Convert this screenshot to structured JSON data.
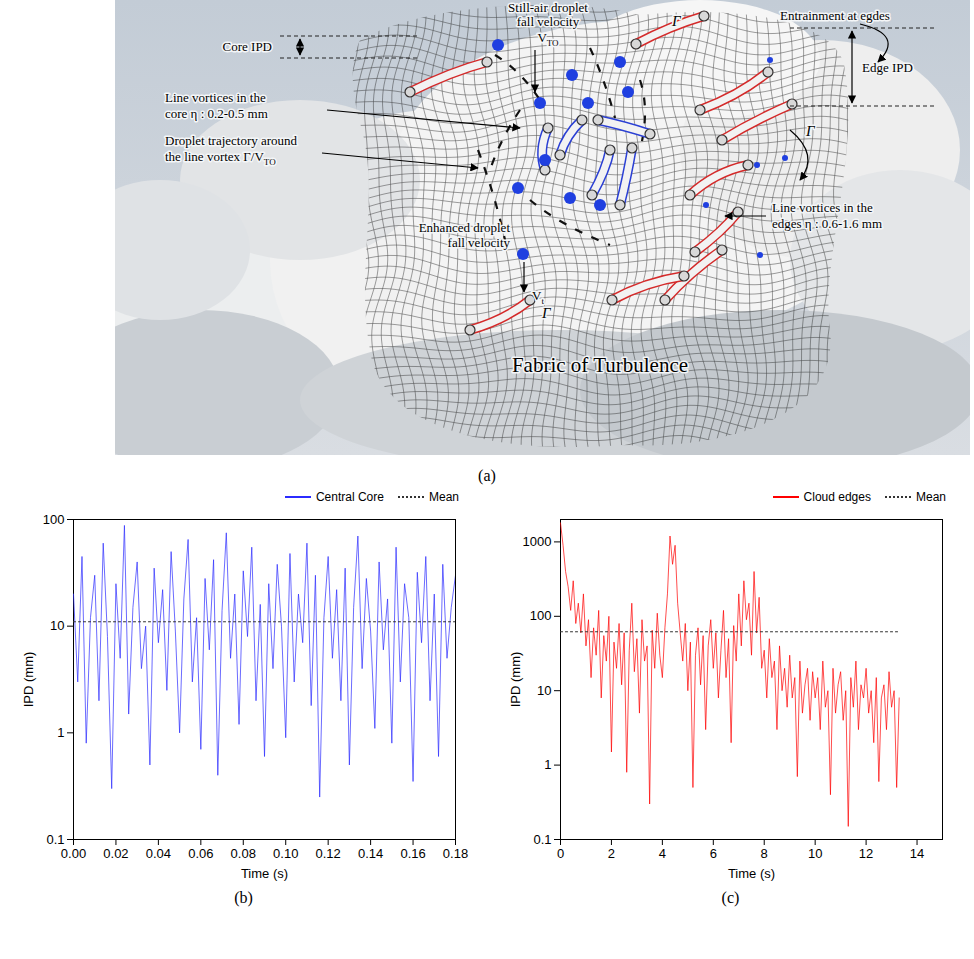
{
  "diagram": {
    "caption": "(a)",
    "still_air": {
      "lines": [
        "Still-air droplet",
        "fall velocity"
      ],
      "symbol": "V",
      "sub": "TO"
    },
    "entrainment": "Entrainment at egdes",
    "core_ipd": "Core IPD",
    "edge_ipd": "Edge IPD",
    "core_vortices": [
      "Line vortices in the",
      "core η : 0.2-0.5 mm"
    ],
    "trajectory": {
      "lines": [
        "Droplet trajectory around",
        "the line vortex Γ/V"
      ],
      "sub": "TO"
    },
    "enhanced": {
      "lines": [
        "Enhanced droplet",
        "fall velocity"
      ],
      "symbol": "V",
      "sub": "t"
    },
    "edge_vortices": [
      "Line vortices in the",
      "edges η : 0.6-1.6 mm"
    ],
    "fabric": "Fabric of Turbulence",
    "circulation": "Γ"
  },
  "chart_data": [
    {
      "type": "line",
      "caption": "(b)",
      "x_label": "Time (s)",
      "y_label": "IPD (mm)",
      "log": "y",
      "grid": false,
      "legend": "top",
      "xlim": [
        0,
        0.18
      ],
      "xticks": [
        {
          "value": 0,
          "label": "0.00"
        },
        0.02,
        0.04,
        0.06,
        0.08,
        {
          "value": 0.1,
          "label": "0.10"
        },
        0.12,
        0.14,
        0.16,
        0.18
      ],
      "ylim": [
        0.1,
        100
      ],
      "yticks": [
        0.1,
        1,
        10,
        100
      ],
      "series": [
        {
          "name": "Central Core",
          "color": "#2b2bff",
          "line_style": "solid",
          "x": [
            0,
            0.002,
            0.004,
            0.006,
            0.008,
            0.01,
            0.012,
            0.014,
            0.016,
            0.018,
            0.02,
            0.022,
            0.024,
            0.026,
            0.028,
            0.03,
            0.032,
            0.034,
            0.036,
            0.038,
            0.04,
            0.042,
            0.044,
            0.046,
            0.048,
            0.05,
            0.052,
            0.054,
            0.056,
            0.058,
            0.06,
            0.062,
            0.064,
            0.066,
            0.068,
            0.07,
            0.072,
            0.074,
            0.076,
            0.078,
            0.08,
            0.082,
            0.084,
            0.086,
            0.088,
            0.09,
            0.092,
            0.094,
            0.096,
            0.098,
            0.1,
            0.102,
            0.104,
            0.106,
            0.108,
            0.11,
            0.112,
            0.114,
            0.116,
            0.118,
            0.12,
            0.122,
            0.124,
            0.126,
            0.128,
            0.13,
            0.132,
            0.134,
            0.136,
            0.138,
            0.14,
            0.142,
            0.144,
            0.146,
            0.148,
            0.15,
            0.152,
            0.154,
            0.156,
            0.158,
            0.16,
            0.162,
            0.164,
            0.166,
            0.168,
            0.17,
            0.172,
            0.174,
            0.176,
            0.178,
            0.18
          ],
          "values": [
            20,
            3,
            45,
            0.8,
            12,
            30,
            2,
            60,
            8,
            0.3,
            25,
            5,
            88,
            1.5,
            15,
            40,
            4,
            10,
            0.5,
            35,
            7,
            22,
            2.5,
            50,
            9,
            1,
            18,
            65,
            3,
            12,
            0.7,
            28,
            6,
            42,
            0.4,
            14,
            75,
            5,
            20,
            1.2,
            33,
            8,
            55,
            2,
            16,
            0.6,
            25,
            4,
            38,
            10,
            0.9,
            48,
            3,
            20,
            7,
            60,
            1.8,
            30,
            0.25,
            12,
            45,
            5,
            22,
            2,
            35,
            0.5,
            15,
            70,
            4,
            28,
            9,
            1.1,
            40,
            6,
            18,
            0.8,
            55,
            3,
            25,
            12,
            0.35,
            32,
            7,
            45,
            2,
            20,
            0.6,
            38,
            5,
            15,
            30
          ]
        },
        {
          "name": "Mean",
          "color": "#333333",
          "line_style": "dotted",
          "x": [
            0,
            0.18
          ],
          "values": [
            11,
            11
          ]
        }
      ]
    },
    {
      "type": "line",
      "caption": "(c)",
      "x_label": "Time (s)",
      "y_label": "IPD (mm)",
      "log": "y",
      "grid": false,
      "legend": "top",
      "xlim": [
        0,
        15
      ],
      "xticks": [
        0,
        2,
        4,
        6,
        8,
        10,
        12,
        14
      ],
      "ylim": [
        0.1,
        2000
      ],
      "yticks": [
        0.1,
        1,
        10,
        100,
        1000
      ],
      "series": [
        {
          "name": "Cloud edges",
          "color": "#ff0000",
          "line_style": "solid",
          "x": [
            0,
            0.1,
            0.2,
            0.3,
            0.4,
            0.5,
            0.6,
            0.7,
            0.8,
            0.9,
            1,
            1.1,
            1.2,
            1.3,
            1.4,
            1.5,
            1.6,
            1.7,
            1.8,
            1.9,
            2,
            2.1,
            2.2,
            2.3,
            2.4,
            2.5,
            2.6,
            2.7,
            2.8,
            2.9,
            3,
            3.1,
            3.2,
            3.3,
            3.4,
            3.5,
            3.6,
            3.7,
            3.8,
            3.9,
            4,
            4.1,
            4.2,
            4.3,
            4.4,
            4.5,
            4.6,
            4.7,
            4.8,
            4.9,
            5,
            5.1,
            5.2,
            5.3,
            5.4,
            5.5,
            5.6,
            5.7,
            5.8,
            5.9,
            6,
            6.1,
            6.2,
            6.3,
            6.4,
            6.5,
            6.6,
            6.7,
            6.8,
            6.9,
            7,
            7.1,
            7.2,
            7.3,
            7.4,
            7.5,
            7.6,
            7.7,
            7.8,
            7.9,
            8,
            8.1,
            8.2,
            8.3,
            8.4,
            8.5,
            8.6,
            8.7,
            8.8,
            8.9,
            9,
            9.1,
            9.2,
            9.3,
            9.4,
            9.5,
            9.6,
            9.7,
            9.8,
            9.9,
            10,
            10.1,
            10.2,
            10.3,
            10.4,
            10.5,
            10.6,
            10.7,
            10.8,
            10.9,
            11,
            11.1,
            11.2,
            11.3,
            11.4,
            11.5,
            11.6,
            11.7,
            11.8,
            11.9,
            12,
            12.1,
            12.2,
            12.3,
            12.4,
            12.5,
            12.6,
            12.7,
            12.8,
            12.9,
            13,
            13.1,
            13.2,
            13.3
          ],
          "values": [
            1800,
            900,
            400,
            250,
            120,
            300,
            80,
            150,
            60,
            200,
            40,
            90,
            15,
            70,
            30,
            120,
            8,
            55,
            25,
            100,
            1.5,
            45,
            20,
            80,
            12,
            60,
            0.8,
            35,
            150,
            18,
            50,
            5,
            90,
            25,
            40,
            0.3,
            65,
            20,
            110,
            30,
            15,
            70,
            200,
            1200,
            500,
            900,
            150,
            60,
            25,
            80,
            10,
            45,
            0.5,
            30,
            70,
            12,
            55,
            3,
            40,
            90,
            20,
            60,
            8,
            35,
            120,
            15,
            50,
            2,
            75,
            25,
            200,
            40,
            300,
            90,
            150,
            30,
            400,
            60,
            180,
            20,
            35,
            8,
            50,
            15,
            25,
            3,
            40,
            10,
            20,
            6,
            30,
            8,
            15,
            0.7,
            25,
            5,
            12,
            20,
            4,
            18,
            8,
            15,
            3,
            25,
            6,
            10,
            0.4,
            20,
            5,
            12,
            18,
            4,
            10,
            0.15,
            15,
            6,
            25,
            3,
            12,
            8,
            20,
            5,
            10,
            2,
            15,
            0.6,
            8,
            12,
            3,
            18,
            6,
            10,
            0.5,
            8
          ]
        },
        {
          "name": "Mean",
          "color": "#333333",
          "line_style": "dotted",
          "x": [
            0,
            13.3
          ],
          "values": [
            62,
            62
          ]
        }
      ]
    }
  ]
}
